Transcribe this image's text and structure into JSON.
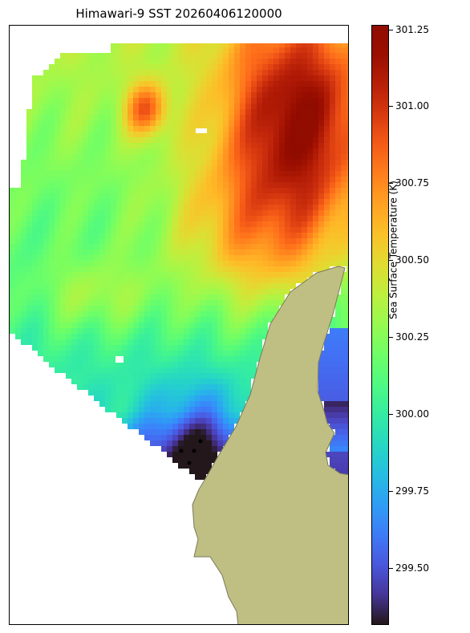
{
  "title": "Himawari-9 SST 20260406120000",
  "colorbar": {
    "label": "Sea Surface Temperature (K)",
    "min": 299.3,
    "max": 301.26,
    "ticks": [
      "299.50",
      "299.75",
      "300.00",
      "300.25",
      "300.50",
      "300.75",
      "301.00",
      "301.25"
    ],
    "colormap": "turbo"
  },
  "colors": {
    "land": "#bfbf84",
    "coast": "#7a7a5a",
    "missing": "#ffffff"
  }
}
